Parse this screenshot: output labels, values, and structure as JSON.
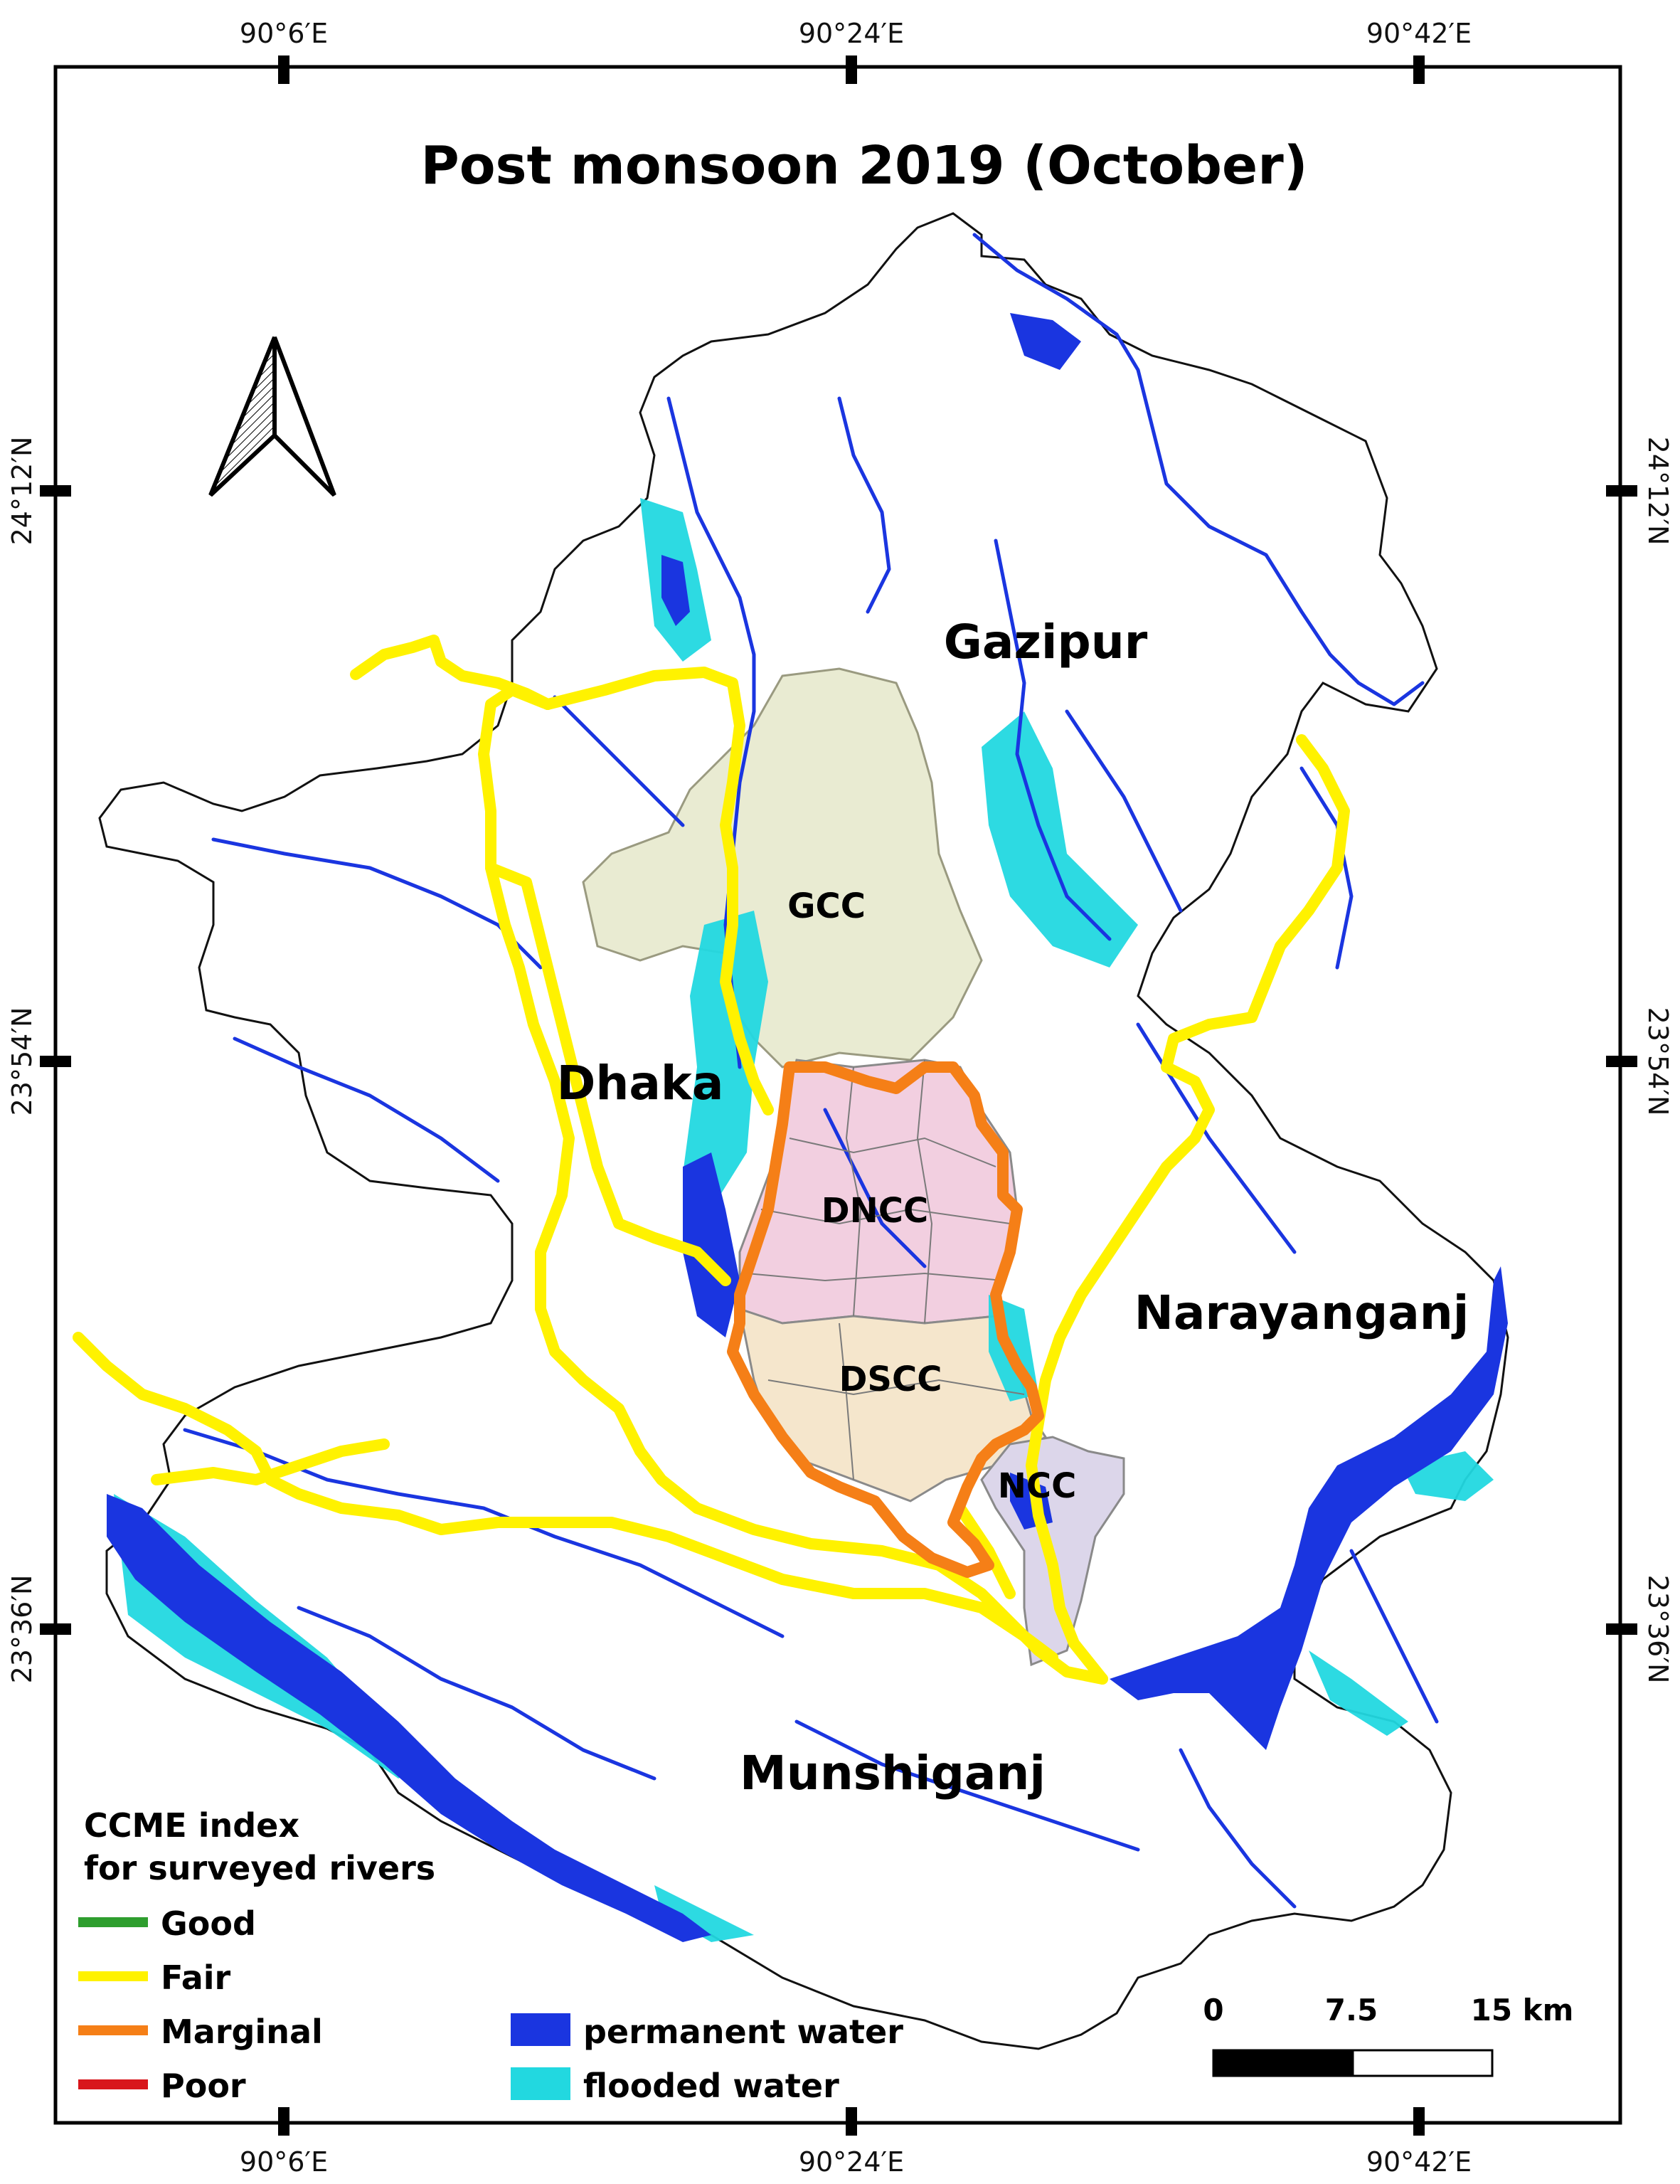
{
  "map": {
    "title": "Post monsoon 2019 (October)",
    "top_ticks": [
      "90°6′E",
      "90°24′E",
      "90°42′E"
    ],
    "bottom_ticks": [
      "90°6′E",
      "90°24′E",
      "90°42′E"
    ],
    "left_ticks": [
      "24°12′N",
      "23°54′N",
      "23°36′N"
    ],
    "right_ticks": [
      "24°12′N",
      "23°54′N",
      "23°36′N"
    ],
    "districts": {
      "gazipur": "Gazipur",
      "dhaka": "Dhaka",
      "narayanganj": "Narayanganj",
      "munshiganj": "Munshiganj"
    },
    "cities": {
      "gcc": "GCC",
      "dncc": "DNCC",
      "dscc": "DSCC",
      "ncc": "NCC"
    },
    "colors": {
      "permanent_water": "#1a35e0",
      "flooded_water": "#22d8e0",
      "good": "#2e9e2e",
      "fair": "#fff200",
      "marginal": "#f57f17",
      "poor": "#d8161b",
      "gcc_fill": "#e9ebd2",
      "dncc_fill": "#f2cfe0",
      "dscc_fill": "#f5e6cc",
      "ncc_fill": "#dcd6ea"
    }
  },
  "legend": {
    "title_line1": "CCME index",
    "title_line2": "for surveyed rivers",
    "river_classes": [
      "Good",
      "Fair",
      "Marginal",
      "Poor"
    ],
    "water_classes": [
      "permanent water",
      "flooded water"
    ]
  },
  "scale_bar": {
    "labels": [
      "0",
      "7.5",
      "15 km"
    ]
  },
  "north_arrow": "north-arrow-icon"
}
